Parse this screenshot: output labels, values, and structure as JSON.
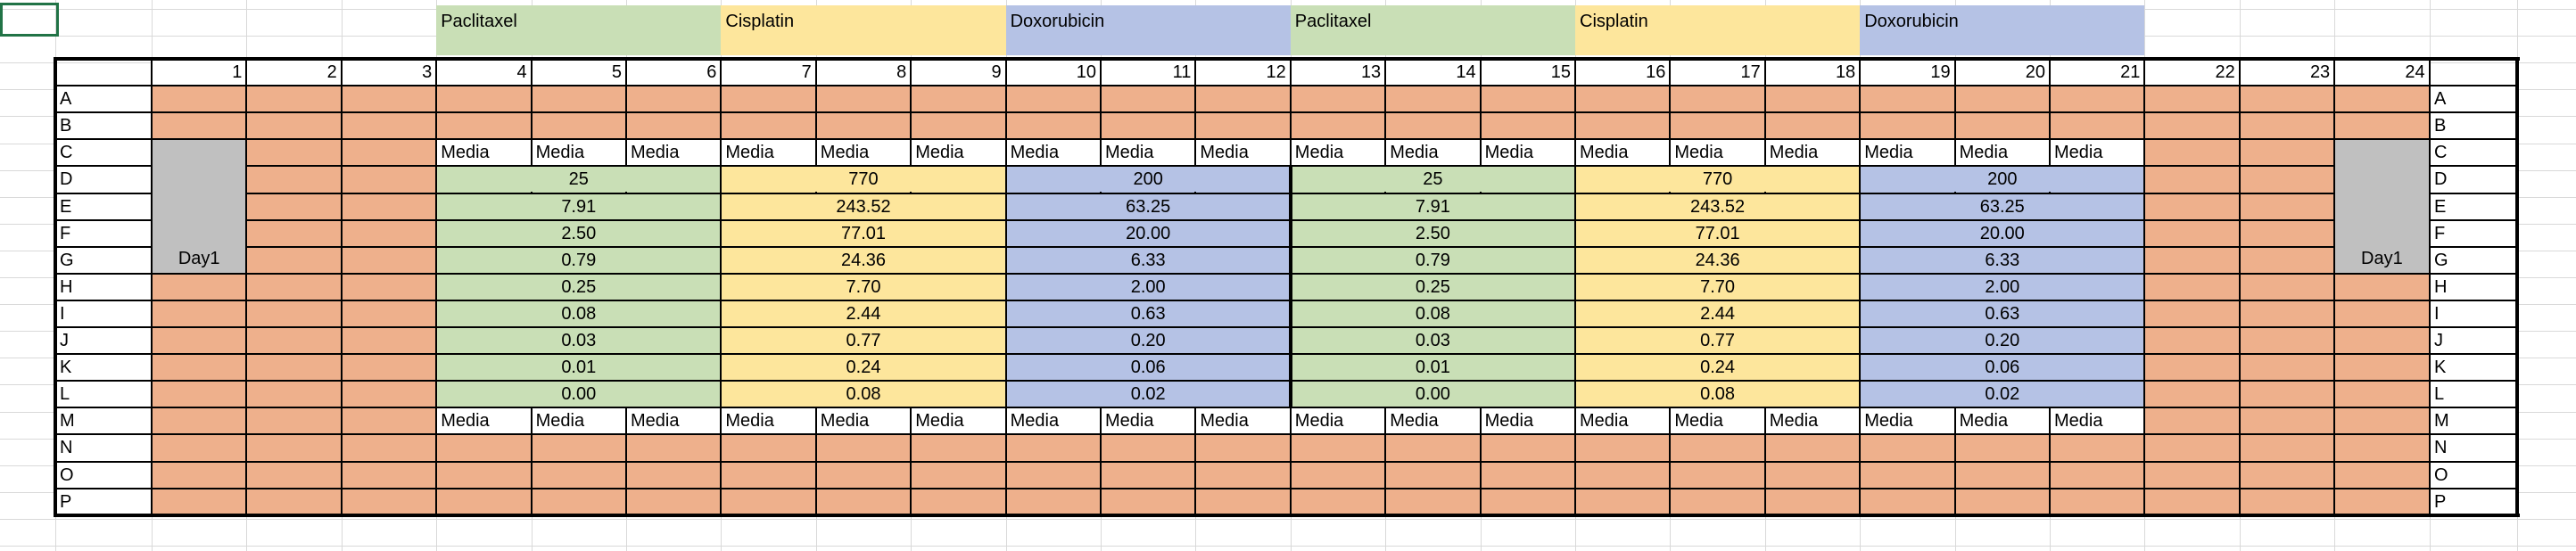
{
  "colors": {
    "orange": "#eeb08c",
    "green": "#c9dfb6",
    "yellow": "#fde69c",
    "blue": "#b5c2e5",
    "gray": "#c0c0c0",
    "white": "#ffffff",
    "selection": "#217346"
  },
  "drug_headers": [
    "Paclitaxel",
    "Cisplatin",
    "Doxorubicin",
    "Paclitaxel",
    "Cisplatin",
    "Doxorubicin"
  ],
  "drug_colors": [
    "green",
    "yellow",
    "blue",
    "green",
    "yellow",
    "blue"
  ],
  "column_numbers": [
    "1",
    "2",
    "3",
    "4",
    "5",
    "6",
    "7",
    "8",
    "9",
    "10",
    "11",
    "12",
    "13",
    "14",
    "15",
    "16",
    "17",
    "18",
    "19",
    "20",
    "21",
    "22",
    "23",
    "24"
  ],
  "row_letters": [
    "A",
    "B",
    "C",
    "D",
    "E",
    "F",
    "G",
    "H",
    "I",
    "J",
    "K",
    "L",
    "M",
    "N",
    "O",
    "P"
  ],
  "media_label": "Media",
  "day_label": "Day1",
  "doses": {
    "paclitaxel": [
      "25",
      "7.91",
      "2.50",
      "0.79",
      "0.25",
      "0.08",
      "0.03",
      "0.01",
      "0.00"
    ],
    "cisplatin": [
      "770",
      "243.52",
      "77.01",
      "24.36",
      "7.70",
      "2.44",
      "0.77",
      "0.24",
      "0.08"
    ],
    "doxorubicin": [
      "200",
      "63.25",
      "20.00",
      "6.33",
      "2.00",
      "0.63",
      "0.20",
      "0.06",
      "0.02"
    ]
  },
  "dose_blocks": [
    {
      "drug": "paclitaxel",
      "color": "green"
    },
    {
      "drug": "cisplatin",
      "color": "yellow"
    },
    {
      "drug": "doxorubicin",
      "color": "blue"
    },
    {
      "drug": "paclitaxel",
      "color": "green"
    },
    {
      "drug": "cisplatin",
      "color": "yellow"
    },
    {
      "drug": "doxorubicin",
      "color": "blue"
    }
  ]
}
